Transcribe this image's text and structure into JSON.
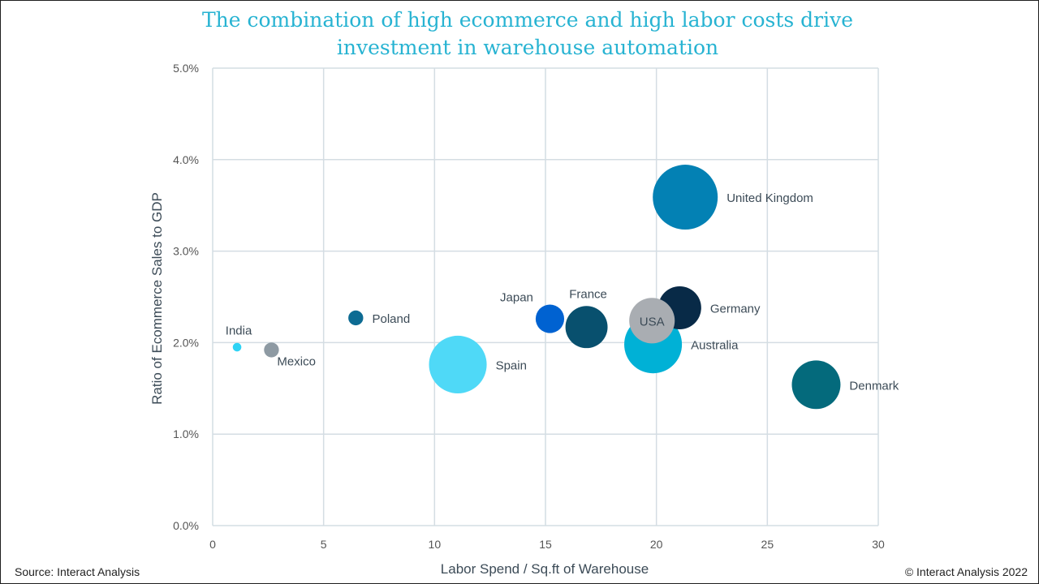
{
  "title_line1": "The combination of high ecommerce and high labor costs drive",
  "title_line2": "investment in warehouse automation",
  "footer": {
    "source": "Source: Interact Analysis",
    "copyright": "© Interact Analysis 2022"
  },
  "chart_data": {
    "type": "scatter",
    "bubble": true,
    "title": "The combination of high ecommerce and high labor costs drive investment in warehouse automation",
    "xlabel": "Labor Spend / Sq.ft of Warehouse",
    "ylabel": "Ratio of Ecommerce Sales to GDP",
    "xlim": [
      0,
      30
    ],
    "ylim": [
      0,
      5
    ],
    "x_ticks": [
      0,
      5,
      10,
      15,
      20,
      25,
      30
    ],
    "x_tick_labels": [
      "0",
      "5",
      "10",
      "15",
      "20",
      "25",
      "30"
    ],
    "y_ticks": [
      0,
      1,
      2,
      3,
      4,
      5
    ],
    "y_tick_labels": [
      "0.0%",
      "1.0%",
      "2.0%",
      "3.0%",
      "4.0%",
      "5.0%"
    ],
    "grid": true,
    "points": [
      {
        "name": "India",
        "x": 1.1,
        "y": 1.95,
        "size": 1,
        "color": "#2fd3f5",
        "label_pos": "above"
      },
      {
        "name": "Mexico",
        "x": 2.65,
        "y": 1.92,
        "size": 3,
        "color": "#8e9aa3",
        "label_pos": "below-right"
      },
      {
        "name": "Poland",
        "x": 6.45,
        "y": 2.27,
        "size": 3,
        "color": "#0d6b93",
        "label_pos": "right"
      },
      {
        "name": "Spain",
        "x": 11.05,
        "y": 1.76,
        "size": 45,
        "color": "#4fd9f7",
        "label_pos": "right"
      },
      {
        "name": "Japan",
        "x": 15.2,
        "y": 2.26,
        "size": 11,
        "color": "#0062d1",
        "label_pos": "above-left"
      },
      {
        "name": "France",
        "x": 16.85,
        "y": 2.17,
        "size": 24,
        "color": "#08506e",
        "label_pos": "above"
      },
      {
        "name": "Australia",
        "x": 19.85,
        "y": 1.98,
        "size": 45,
        "color": "#00b1d6",
        "label_pos": "right"
      },
      {
        "name": "Germany",
        "x": 21.05,
        "y": 2.38,
        "size": 25,
        "color": "#082a47",
        "label_pos": "right"
      },
      {
        "name": "USA",
        "x": 19.8,
        "y": 2.24,
        "size": 28,
        "color": "#a9adb2",
        "label_pos": "center"
      },
      {
        "name": "United Kingdom",
        "x": 21.3,
        "y": 3.59,
        "size": 57,
        "color": "#0381b4",
        "label_pos": "right"
      },
      {
        "name": "Denmark",
        "x": 27.2,
        "y": 1.54,
        "size": 32,
        "color": "#046a7c",
        "label_pos": "right"
      }
    ]
  }
}
